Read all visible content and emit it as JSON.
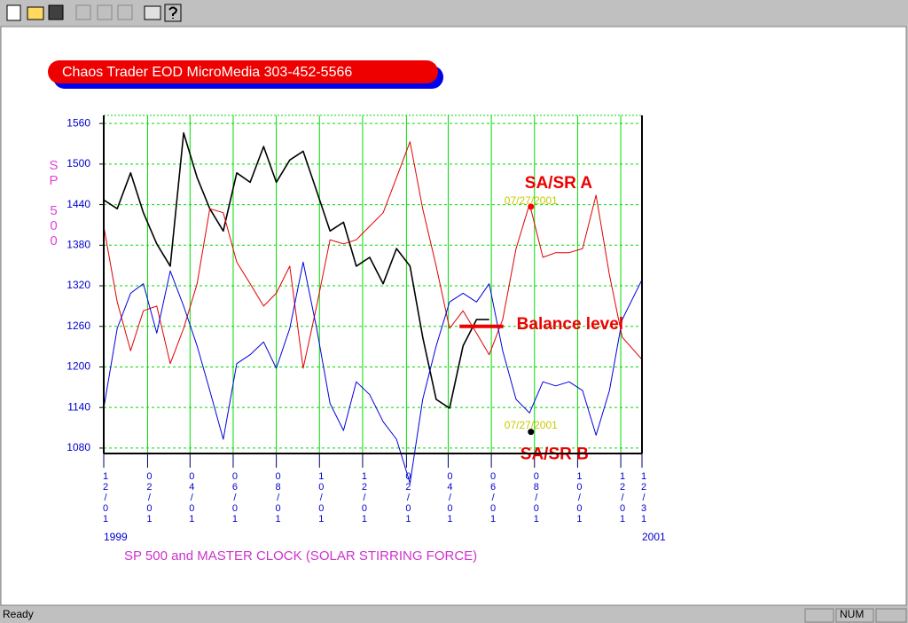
{
  "status_bar": {
    "message": "Ready",
    "indicator": "NUM"
  },
  "chart_data": {
    "type": "line",
    "title": "Chaos Trader EOD MicroMedia 303-452-5566",
    "ylabel": "SP 500",
    "xlabel": "SP 500 and MASTER CLOCK  (SOLAR STIRRING FORCE)",
    "year_labels": [
      "1999",
      "2001"
    ],
    "x": [
      "1999-12-01",
      "1999-12-20",
      "2000-01-08",
      "2000-01-26",
      "2000-02-14",
      "2000-03-04",
      "2000-03-23",
      "2000-04-11",
      "2000-04-29",
      "2000-05-18",
      "2000-06-06",
      "2000-06-25",
      "2000-07-14",
      "2000-08-01",
      "2000-08-20",
      "2000-09-08",
      "2000-09-27",
      "2000-10-16",
      "2000-11-04",
      "2000-11-22",
      "2000-12-11",
      "2000-12-30",
      "2001-01-18",
      "2001-02-06",
      "2001-02-24",
      "2001-03-15",
      "2001-04-03",
      "2001-04-22",
      "2001-05-11",
      "2001-05-29",
      "2001-06-17",
      "2001-07-06",
      "2001-07-25",
      "2001-08-13",
      "2001-08-31",
      "2001-09-19",
      "2001-10-08",
      "2001-10-27",
      "2001-11-15",
      "2001-12-03",
      "2001-12-31"
    ],
    "xlim": [
      "1999-12-01",
      "2001-12-31"
    ],
    "xticks": [
      {
        "value": "1999-12-01",
        "label": "12/01"
      },
      {
        "value": "2000-02-01",
        "label": "02/01"
      },
      {
        "value": "2000-04-01",
        "label": "04/01"
      },
      {
        "value": "2000-06-01",
        "label": "06/01"
      },
      {
        "value": "2000-08-01",
        "label": "08/01"
      },
      {
        "value": "2000-10-01",
        "label": "10/01"
      },
      {
        "value": "2000-12-01",
        "label": "12/01"
      },
      {
        "value": "2001-02-01",
        "label": "02/01"
      },
      {
        "value": "2001-04-01",
        "label": "04/01"
      },
      {
        "value": "2001-06-01",
        "label": "06/01"
      },
      {
        "value": "2001-08-01",
        "label": "08/01"
      },
      {
        "value": "2001-10-01",
        "label": "10/01"
      },
      {
        "value": "2001-12-01",
        "label": "12/01"
      },
      {
        "value": "2001-12-31",
        "label": "12/31"
      }
    ],
    "ylim": [
      1072,
      1572
    ],
    "yticks": [
      1560,
      1500,
      1440,
      1380,
      1320,
      1260,
      1200,
      1140,
      1080
    ],
    "grid": true,
    "grid_color": "#00dd00",
    "series": [
      {
        "color": "#000000",
        "values": [
          1447,
          1434,
          1487,
          1428,
          1382,
          1349,
          1546,
          1480,
          1434,
          1401,
          1487,
          1473,
          1526,
          1473,
          1506,
          1519,
          1460,
          1401,
          1414,
          1349,
          1362,
          1323,
          1375,
          1349,
          1244,
          1152,
          1139,
          1231,
          1270,
          1270,
          null,
          null,
          null,
          null,
          null,
          null,
          null,
          null,
          null,
          null,
          null
        ]
      },
      {
        "color": "#e00000",
        "values": [
          1408,
          1296,
          1224,
          1283,
          1290,
          1205,
          1257,
          1323,
          1434,
          1428,
          1355,
          1323,
          1290,
          1309,
          1349,
          1198,
          1290,
          1388,
          1382,
          1388,
          1408,
          1428,
          1480,
          1533,
          1434,
          1349,
          1257,
          1283,
          1250,
          1218,
          1270,
          1375,
          1441,
          1362,
          1369,
          1369,
          1375,
          1454,
          1336,
          1244,
          1211
        ]
      },
      {
        "color": "#0000e0",
        "values": [
          1139,
          1257,
          1309,
          1323,
          1250,
          1342,
          1290,
          1231,
          1165,
          1093,
          1205,
          1218,
          1237,
          1198,
          1257,
          1355,
          1257,
          1146,
          1106,
          1178,
          1159,
          1119,
          1093,
          1028,
          1152,
          1231,
          1296,
          1309,
          1296,
          1323,
          1224,
          1152,
          1132,
          1178,
          1172,
          1178,
          1165,
          1099,
          1165,
          1270,
          1329
        ]
      }
    ],
    "annotations": [
      {
        "text": "SA/SR A",
        "date_label": "07/27/2001",
        "x": "2001-07-27",
        "y": 1437,
        "marker_color": "#ff0000",
        "position": "above"
      },
      {
        "text": "SA/SR B",
        "date_label": "07/27/2001",
        "x": "2001-07-27",
        "y": 1104,
        "marker_color": "#000000",
        "position": "below"
      }
    ],
    "balance_level": {
      "text": "Balance level",
      "value": 1260,
      "x": [
        "2001-04-17",
        "2001-06-18"
      ],
      "color": "#ee0000"
    }
  }
}
